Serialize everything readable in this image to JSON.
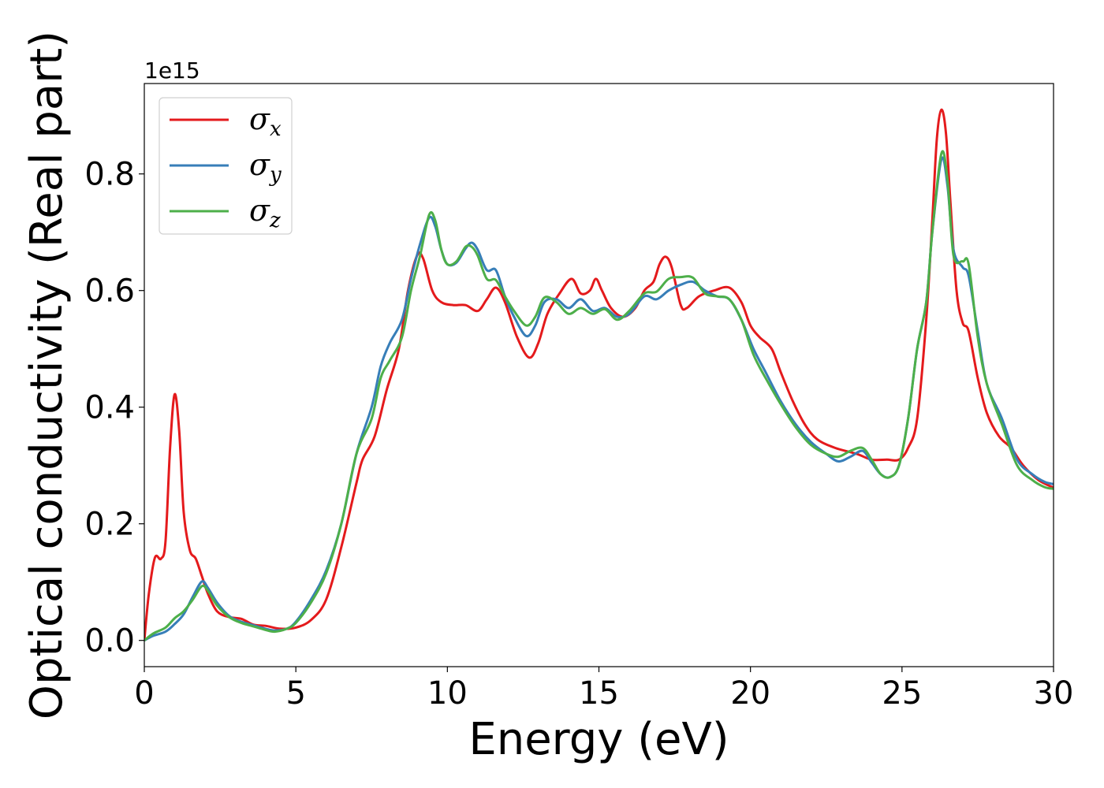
{
  "chart_data": {
    "type": "line",
    "xlabel": "Energy (eV)",
    "ylabel": "Optical conductivity (Real part)",
    "y_offset_label": "1e15",
    "xlim": [
      0,
      30
    ],
    "ylim": [
      -0.045,
      0.955
    ],
    "x_ticks": [
      0,
      5,
      10,
      15,
      20,
      25,
      30
    ],
    "x_tick_labels": [
      "0",
      "5",
      "10",
      "15",
      "20",
      "25",
      "30"
    ],
    "y_ticks": [
      0.0,
      0.2,
      0.4,
      0.6,
      0.8
    ],
    "y_tick_labels": [
      "0.0",
      "0.2",
      "0.4",
      "0.6",
      "0.8"
    ],
    "grid": false,
    "legend": "top-left",
    "series": [
      {
        "name": "σx",
        "symbol": "σ",
        "sub": "x",
        "color": "#e41a1c",
        "points": [
          [
            0,
            0
          ],
          [
            0.15,
            0.08
          ],
          [
            0.35,
            0.142
          ],
          [
            0.55,
            0.14
          ],
          [
            0.7,
            0.17
          ],
          [
            0.85,
            0.33
          ],
          [
            1.0,
            0.422
          ],
          [
            1.15,
            0.36
          ],
          [
            1.3,
            0.22
          ],
          [
            1.5,
            0.155
          ],
          [
            1.7,
            0.14
          ],
          [
            1.9,
            0.11
          ],
          [
            2.1,
            0.08
          ],
          [
            2.4,
            0.05
          ],
          [
            2.8,
            0.04
          ],
          [
            3.2,
            0.037
          ],
          [
            3.6,
            0.027
          ],
          [
            4.0,
            0.025
          ],
          [
            4.5,
            0.02
          ],
          [
            5.0,
            0.022
          ],
          [
            5.5,
            0.035
          ],
          [
            6.0,
            0.07
          ],
          [
            6.5,
            0.16
          ],
          [
            7.0,
            0.27
          ],
          [
            7.2,
            0.31
          ],
          [
            7.6,
            0.35
          ],
          [
            8.0,
            0.43
          ],
          [
            8.4,
            0.5
          ],
          [
            8.7,
            0.6
          ],
          [
            9.0,
            0.66
          ],
          [
            9.2,
            0.655
          ],
          [
            9.5,
            0.6
          ],
          [
            9.8,
            0.58
          ],
          [
            10.2,
            0.575
          ],
          [
            10.6,
            0.575
          ],
          [
            11.0,
            0.565
          ],
          [
            11.3,
            0.585
          ],
          [
            11.6,
            0.605
          ],
          [
            11.9,
            0.58
          ],
          [
            12.3,
            0.52
          ],
          [
            12.7,
            0.485
          ],
          [
            13.0,
            0.51
          ],
          [
            13.3,
            0.56
          ],
          [
            13.7,
            0.595
          ],
          [
            14.1,
            0.62
          ],
          [
            14.4,
            0.595
          ],
          [
            14.7,
            0.6
          ],
          [
            14.9,
            0.62
          ],
          [
            15.1,
            0.6
          ],
          [
            15.4,
            0.57
          ],
          [
            15.8,
            0.555
          ],
          [
            16.2,
            0.57
          ],
          [
            16.5,
            0.6
          ],
          [
            16.8,
            0.615
          ],
          [
            17.0,
            0.645
          ],
          [
            17.2,
            0.658
          ],
          [
            17.4,
            0.64
          ],
          [
            17.7,
            0.575
          ],
          [
            17.9,
            0.57
          ],
          [
            18.3,
            0.59
          ],
          [
            18.8,
            0.6
          ],
          [
            19.3,
            0.605
          ],
          [
            19.7,
            0.58
          ],
          [
            20.0,
            0.54
          ],
          [
            20.3,
            0.52
          ],
          [
            20.7,
            0.5
          ],
          [
            21.0,
            0.46
          ],
          [
            21.4,
            0.41
          ],
          [
            21.8,
            0.37
          ],
          [
            22.2,
            0.345
          ],
          [
            22.8,
            0.33
          ],
          [
            23.5,
            0.32
          ],
          [
            24.0,
            0.31
          ],
          [
            24.5,
            0.31
          ],
          [
            24.9,
            0.31
          ],
          [
            25.2,
            0.33
          ],
          [
            25.5,
            0.38
          ],
          [
            25.8,
            0.55
          ],
          [
            26.0,
            0.72
          ],
          [
            26.15,
            0.86
          ],
          [
            26.3,
            0.91
          ],
          [
            26.45,
            0.87
          ],
          [
            26.6,
            0.75
          ],
          [
            26.8,
            0.6
          ],
          [
            27.0,
            0.545
          ],
          [
            27.2,
            0.53
          ],
          [
            27.5,
            0.45
          ],
          [
            27.8,
            0.39
          ],
          [
            28.2,
            0.35
          ],
          [
            28.6,
            0.33
          ],
          [
            29.0,
            0.3
          ],
          [
            29.5,
            0.275
          ],
          [
            30.0,
            0.262
          ]
        ]
      },
      {
        "name": "σy",
        "symbol": "σ",
        "sub": "y",
        "color": "#377eb8",
        "points": [
          [
            0,
            0
          ],
          [
            0.3,
            0.008
          ],
          [
            0.7,
            0.015
          ],
          [
            1.0,
            0.028
          ],
          [
            1.3,
            0.045
          ],
          [
            1.6,
            0.075
          ],
          [
            1.9,
            0.101
          ],
          [
            2.1,
            0.09
          ],
          [
            2.4,
            0.065
          ],
          [
            2.8,
            0.042
          ],
          [
            3.2,
            0.032
          ],
          [
            3.6,
            0.026
          ],
          [
            4.0,
            0.02
          ],
          [
            4.3,
            0.017
          ],
          [
            4.7,
            0.02
          ],
          [
            5.0,
            0.032
          ],
          [
            5.5,
            0.07
          ],
          [
            6.0,
            0.12
          ],
          [
            6.5,
            0.2
          ],
          [
            7.0,
            0.32
          ],
          [
            7.5,
            0.4
          ],
          [
            7.8,
            0.47
          ],
          [
            8.1,
            0.51
          ],
          [
            8.5,
            0.55
          ],
          [
            8.8,
            0.62
          ],
          [
            9.1,
            0.68
          ],
          [
            9.4,
            0.725
          ],
          [
            9.6,
            0.71
          ],
          [
            9.8,
            0.67
          ],
          [
            10.0,
            0.645
          ],
          [
            10.3,
            0.648
          ],
          [
            10.6,
            0.672
          ],
          [
            10.8,
            0.682
          ],
          [
            11.0,
            0.67
          ],
          [
            11.3,
            0.635
          ],
          [
            11.6,
            0.635
          ],
          [
            11.9,
            0.59
          ],
          [
            12.2,
            0.555
          ],
          [
            12.6,
            0.522
          ],
          [
            12.9,
            0.54
          ],
          [
            13.2,
            0.58
          ],
          [
            13.6,
            0.585
          ],
          [
            14.0,
            0.57
          ],
          [
            14.4,
            0.585
          ],
          [
            14.8,
            0.565
          ],
          [
            15.2,
            0.57
          ],
          [
            15.6,
            0.555
          ],
          [
            16.0,
            0.56
          ],
          [
            16.5,
            0.59
          ],
          [
            16.9,
            0.585
          ],
          [
            17.3,
            0.6
          ],
          [
            17.7,
            0.61
          ],
          [
            18.1,
            0.615
          ],
          [
            18.5,
            0.6
          ],
          [
            18.9,
            0.59
          ],
          [
            19.3,
            0.585
          ],
          [
            19.7,
            0.55
          ],
          [
            20.1,
            0.5
          ],
          [
            20.5,
            0.46
          ],
          [
            21.0,
            0.41
          ],
          [
            21.5,
            0.37
          ],
          [
            22.0,
            0.34
          ],
          [
            22.5,
            0.32
          ],
          [
            22.9,
            0.307
          ],
          [
            23.3,
            0.315
          ],
          [
            23.7,
            0.325
          ],
          [
            24.0,
            0.305
          ],
          [
            24.3,
            0.285
          ],
          [
            24.6,
            0.28
          ],
          [
            24.9,
            0.3
          ],
          [
            25.2,
            0.38
          ],
          [
            25.5,
            0.5
          ],
          [
            25.8,
            0.58
          ],
          [
            26.0,
            0.7
          ],
          [
            26.3,
            0.825
          ],
          [
            26.5,
            0.78
          ],
          [
            26.7,
            0.67
          ],
          [
            27.0,
            0.64
          ],
          [
            27.2,
            0.625
          ],
          [
            27.5,
            0.53
          ],
          [
            27.8,
            0.44
          ],
          [
            28.3,
            0.38
          ],
          [
            28.8,
            0.31
          ],
          [
            29.3,
            0.285
          ],
          [
            29.7,
            0.272
          ],
          [
            30.0,
            0.268
          ]
        ]
      },
      {
        "name": "σz",
        "symbol": "σ",
        "sub": "z",
        "color": "#4daf4a",
        "points": [
          [
            0,
            0
          ],
          [
            0.3,
            0.012
          ],
          [
            0.7,
            0.022
          ],
          [
            1.0,
            0.038
          ],
          [
            1.3,
            0.05
          ],
          [
            1.6,
            0.07
          ],
          [
            1.9,
            0.093
          ],
          [
            2.1,
            0.085
          ],
          [
            2.4,
            0.06
          ],
          [
            2.8,
            0.04
          ],
          [
            3.2,
            0.03
          ],
          [
            3.6,
            0.024
          ],
          [
            4.0,
            0.018
          ],
          [
            4.3,
            0.015
          ],
          [
            4.7,
            0.02
          ],
          [
            5.0,
            0.03
          ],
          [
            5.5,
            0.065
          ],
          [
            6.0,
            0.115
          ],
          [
            6.5,
            0.2
          ],
          [
            7.0,
            0.32
          ],
          [
            7.5,
            0.38
          ],
          [
            7.8,
            0.45
          ],
          [
            8.1,
            0.48
          ],
          [
            8.5,
            0.52
          ],
          [
            8.8,
            0.6
          ],
          [
            9.1,
            0.66
          ],
          [
            9.4,
            0.73
          ],
          [
            9.6,
            0.72
          ],
          [
            9.8,
            0.67
          ],
          [
            10.0,
            0.645
          ],
          [
            10.3,
            0.65
          ],
          [
            10.6,
            0.675
          ],
          [
            10.8,
            0.675
          ],
          [
            11.0,
            0.66
          ],
          [
            11.3,
            0.62
          ],
          [
            11.6,
            0.618
          ],
          [
            11.9,
            0.59
          ],
          [
            12.2,
            0.565
          ],
          [
            12.6,
            0.54
          ],
          [
            12.9,
            0.555
          ],
          [
            13.2,
            0.588
          ],
          [
            13.6,
            0.58
          ],
          [
            14.0,
            0.56
          ],
          [
            14.4,
            0.57
          ],
          [
            14.8,
            0.56
          ],
          [
            15.2,
            0.568
          ],
          [
            15.6,
            0.55
          ],
          [
            16.0,
            0.565
          ],
          [
            16.5,
            0.595
          ],
          [
            16.9,
            0.598
          ],
          [
            17.3,
            0.62
          ],
          [
            17.7,
            0.623
          ],
          [
            18.1,
            0.622
          ],
          [
            18.5,
            0.595
          ],
          [
            18.9,
            0.59
          ],
          [
            19.3,
            0.585
          ],
          [
            19.7,
            0.55
          ],
          [
            20.1,
            0.49
          ],
          [
            20.5,
            0.45
          ],
          [
            21.0,
            0.405
          ],
          [
            21.5,
            0.365
          ],
          [
            22.0,
            0.335
          ],
          [
            22.5,
            0.32
          ],
          [
            22.9,
            0.315
          ],
          [
            23.3,
            0.325
          ],
          [
            23.7,
            0.33
          ],
          [
            24.0,
            0.31
          ],
          [
            24.3,
            0.285
          ],
          [
            24.6,
            0.28
          ],
          [
            24.9,
            0.3
          ],
          [
            25.2,
            0.38
          ],
          [
            25.5,
            0.5
          ],
          [
            25.8,
            0.58
          ],
          [
            26.0,
            0.7
          ],
          [
            26.3,
            0.835
          ],
          [
            26.5,
            0.79
          ],
          [
            26.7,
            0.66
          ],
          [
            27.0,
            0.65
          ],
          [
            27.2,
            0.645
          ],
          [
            27.5,
            0.52
          ],
          [
            27.8,
            0.44
          ],
          [
            28.3,
            0.37
          ],
          [
            28.8,
            0.3
          ],
          [
            29.3,
            0.275
          ],
          [
            29.7,
            0.263
          ],
          [
            30.0,
            0.26
          ]
        ]
      }
    ]
  }
}
